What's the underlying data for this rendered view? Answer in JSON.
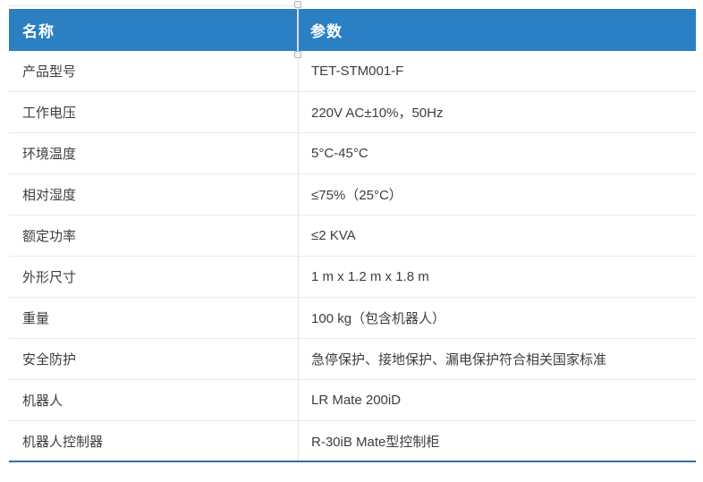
{
  "table": {
    "header": {
      "name_label": "名称",
      "param_label": "参数"
    },
    "rows": [
      {
        "name": "产品型号",
        "value": "TET-STM001-F"
      },
      {
        "name": "工作电压",
        "value": "220V AC±10%，50Hz"
      },
      {
        "name": "环境温度",
        "value": "5°C-45°C"
      },
      {
        "name": "相对湿度",
        "value": "≤75%（25°C）"
      },
      {
        "name": "额定功率",
        "value": "≤2 KVA"
      },
      {
        "name": "外形尺寸",
        "value": "1 m x 1.2 m x 1.8 m"
      },
      {
        "name": "重量",
        "value": "100 kg（包含机器人）"
      },
      {
        "name": "安全防护",
        "value": "急停保护、接地保护、漏电保护符合相关国家标准"
      },
      {
        "name": "机器人",
        "value": "LR Mate 200iD"
      },
      {
        "name": "机器人控制器",
        "value": "R-30iB Mate型控制柜"
      }
    ]
  },
  "colors": {
    "header_bg": "#2b80c4",
    "header_text": "#ffffff",
    "body_text": "#3d3d3d",
    "row_separator": "#e9e9e9",
    "column_divider": "#e6e6e6",
    "bottom_border": "#2d70a9"
  }
}
